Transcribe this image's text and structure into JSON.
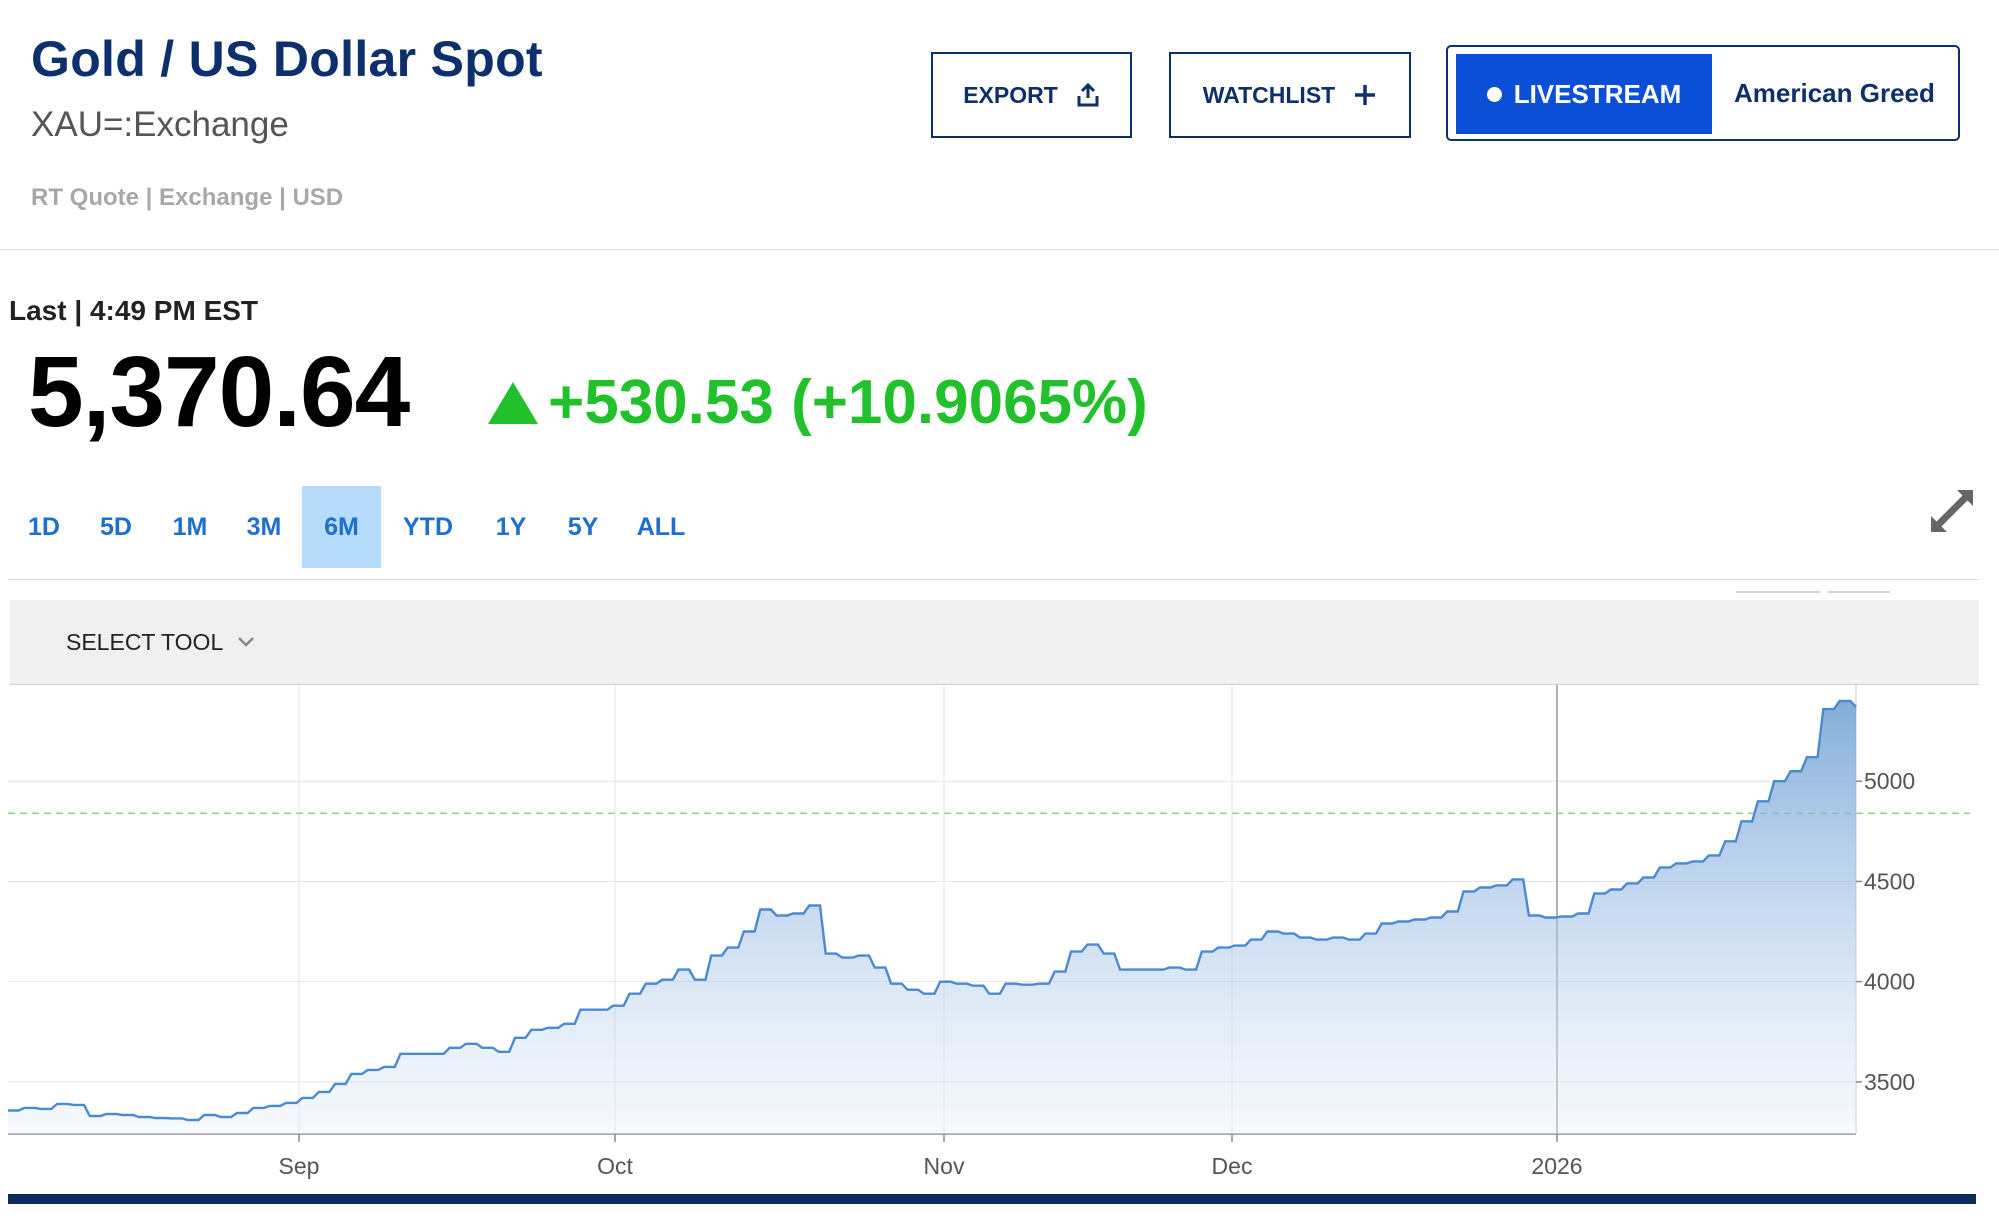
{
  "header": {
    "title": "Gold / US Dollar Spot",
    "symbol": "XAU=:Exchange",
    "meta": "RT Quote | Exchange | USD"
  },
  "actions": {
    "export_label": "EXPORT",
    "watchlist_label": "WATCHLIST",
    "livestream_label": "LIVESTREAM",
    "livestream_show": "American Greed"
  },
  "quote": {
    "last_label": "Last | 4:49 PM EST",
    "price": "5,370.64",
    "change": "+530.53 (+10.9065%)",
    "direction": "up",
    "change_color": "#22c02b"
  },
  "ranges": [
    {
      "label": "1D",
      "active": false
    },
    {
      "label": "5D",
      "active": false
    },
    {
      "label": "1M",
      "active": false
    },
    {
      "label": "3M",
      "active": false
    },
    {
      "label": "6M",
      "active": true
    },
    {
      "label": "YTD",
      "active": false
    },
    {
      "label": "1Y",
      "active": false
    },
    {
      "label": "5Y",
      "active": false
    },
    {
      "label": "ALL",
      "active": false
    }
  ],
  "toolbar": {
    "select_tool_label": "SELECT TOOL"
  },
  "icons": {
    "export": "share-upload-icon",
    "watchlist": "plus-icon",
    "livestream": "dot-icon",
    "select_tool": "chevron-down-icon",
    "expand": "expand-arrows-icon"
  },
  "colors": {
    "title": "#0d2f6b",
    "accent_blue": "#0a4fd6",
    "range_text": "#1e6fd0",
    "range_active_bg": "#b7dbfb",
    "line": "#4a8ad0",
    "up": "#22c02b"
  },
  "chart_data": {
    "type": "area",
    "x_tick_labels": [
      "Sep",
      "Oct",
      "Nov",
      "Dec",
      "2026"
    ],
    "y_ticks": [
      3500,
      4000,
      4500,
      5000
    ],
    "ylim": [
      3240,
      5480
    ],
    "reference_line": 4840,
    "grid": true,
    "series": [
      {
        "values": [
          3357,
          3370,
          3365,
          3390,
          3385,
          3330,
          3340,
          3335,
          3325,
          3320,
          3318,
          3310,
          3335,
          3325,
          3345,
          3370,
          3380,
          3395,
          3420,
          3450,
          3490,
          3540,
          3560,
          3575,
          3640,
          3640,
          3640,
          3670,
          3690,
          3670,
          3650,
          3720,
          3760,
          3770,
          3790,
          3860,
          3860,
          3880,
          3940,
          3990,
          4010,
          4060,
          4010,
          4130,
          4170,
          4250,
          4360,
          4330,
          4340,
          4380,
          4140,
          4120,
          4130,
          4070,
          3990,
          3960,
          3940,
          4000,
          3990,
          3980,
          3940,
          3990,
          3985,
          3990,
          4050,
          4150,
          4185,
          4140,
          4060,
          4060,
          4060,
          4070,
          4060,
          4150,
          4170,
          4180,
          4210,
          4250,
          4240,
          4220,
          4210,
          4220,
          4210,
          4240,
          4290,
          4300,
          4310,
          4320,
          4350,
          4450,
          4470,
          4480,
          4510,
          4330,
          4320,
          4325,
          4340,
          4440,
          4460,
          4490,
          4520,
          4570,
          4590,
          4600,
          4630,
          4700,
          4800,
          4900,
          5000,
          5050,
          5120,
          5360,
          5400,
          5370
        ]
      }
    ]
  }
}
